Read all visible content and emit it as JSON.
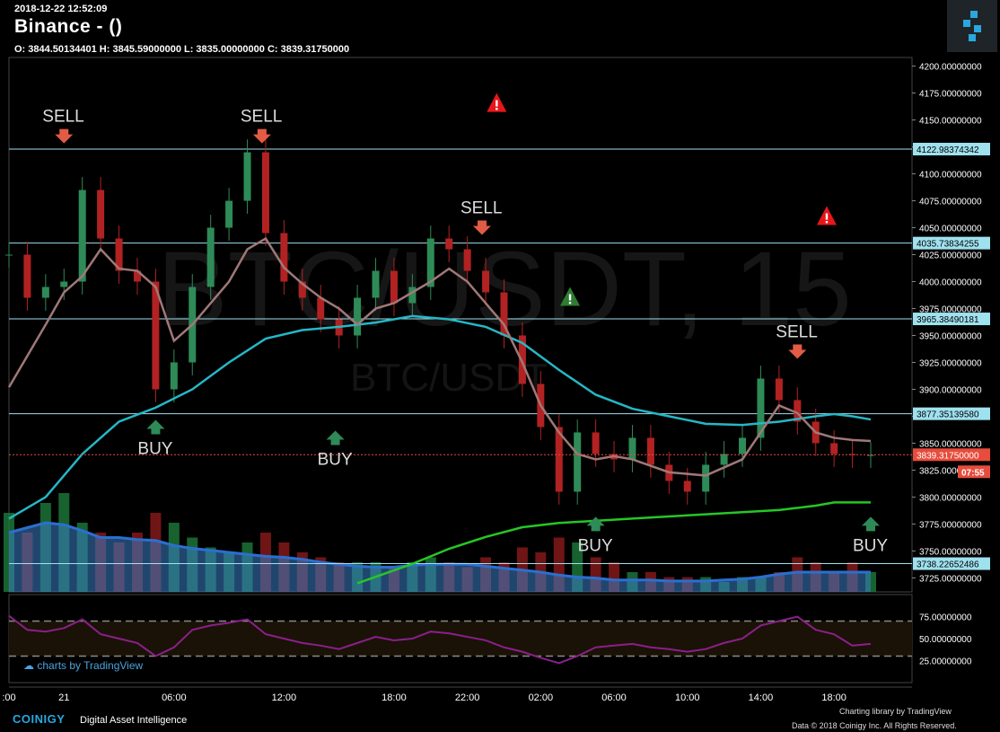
{
  "header": {
    "timestamp": "2018-12-22 12:52:09",
    "title": "Binance -  ()",
    "ohlc": "O: 3844.50134401 H: 3845.59000000 L: 3835.00000000 C: 3839.31750000"
  },
  "watermark": {
    "symbol": "BTC/USDT, 15",
    "pair": "BTC/USDT"
  },
  "colors": {
    "bg": "#000000",
    "up": "#2e8b57",
    "down": "#b22222",
    "ma_fast": "#a07878",
    "ma_mid": "#26b7c6",
    "ma_slow": "#26c626",
    "rsi": "#8b1f8b",
    "level": "#9fe1ef",
    "last_price": "#e74c3c"
  },
  "chart_data": {
    "type": "candlestick",
    "symbol": "BTC/USDT",
    "interval": "15",
    "last_price": 3839.3175,
    "countdown": "07:55",
    "price_axis": {
      "min": 3712,
      "max": 4208,
      "ticks": [
        4200,
        4175,
        4150,
        4125,
        4100,
        4075,
        4050,
        4025,
        4000,
        3975,
        3950,
        3925,
        3900,
        3875,
        3850,
        3825,
        3800,
        3775,
        3750,
        3725
      ],
      "tick_labels": [
        "4200.00000000",
        "4175.00000000",
        "4150.00000000",
        "4125.00000000",
        "4100.00000000",
        "4075.00000000",
        "4050.00000000",
        "4025.00000000",
        "4000.00000000",
        "3975.00000000",
        "3950.00000000",
        "3925.00000000",
        "3900.00000000",
        "3875.00000000",
        "3850.00000000",
        "3825.00000000",
        "3800.00000000",
        "3775.00000000",
        "3750.00000000",
        "3725.00000000"
      ]
    },
    "levels": [
      {
        "value": 4122.98374342,
        "label": "4122.98374342"
      },
      {
        "value": 4035.73834255,
        "label": "4035.73834255"
      },
      {
        "value": 3965.38490181,
        "label": "3965.38490181"
      },
      {
        "value": 3877.3513958,
        "label": "3877.35139580"
      },
      {
        "value": 3738.22652486,
        "label": "3738.22652486"
      }
    ],
    "last_price_label": "3839.31750000",
    "time_axis": {
      "labels": [
        ":00",
        "21",
        "06:00",
        "12:00",
        "18:00",
        "22:00",
        "02:00",
        "06:00",
        "10:00",
        "14:00",
        "18:00"
      ],
      "positions": [
        0,
        1.5,
        4.5,
        7.5,
        10.5,
        12.5,
        14.5,
        16.5,
        18.5,
        20.5,
        22.5
      ],
      "hours_span": [
        0,
        23.5
      ]
    },
    "price_series": {
      "hours": [
        0,
        0.5,
        1,
        1.5,
        2,
        2.5,
        3,
        3.5,
        4,
        4.5,
        5,
        5.5,
        6,
        6.5,
        7,
        7.5,
        8,
        8.5,
        9,
        9.5,
        10,
        10.5,
        11,
        11.5,
        12,
        12.5,
        13,
        13.5,
        14,
        14.5,
        15,
        15.5,
        16,
        16.5,
        17,
        17.5,
        18,
        18.5,
        19,
        19.5,
        20,
        20.5,
        21,
        21.5,
        22,
        22.5,
        23,
        23.5
      ],
      "close": [
        4025,
        3985,
        3995,
        4000,
        4085,
        4040,
        4010,
        4000,
        3900,
        3925,
        3995,
        4050,
        4075,
        4120,
        4045,
        4000,
        3985,
        3965,
        3950,
        3985,
        4010,
        3980,
        3995,
        4040,
        4030,
        4010,
        3990,
        3950,
        3905,
        3865,
        3805,
        3860,
        3840,
        3835,
        3855,
        3830,
        3815,
        3805,
        3830,
        3840,
        3855,
        3910,
        3890,
        3870,
        3850,
        3840,
        3839,
        3839
      ]
    },
    "ma_fast": {
      "hours": [
        0,
        1,
        1.5,
        2,
        2.5,
        3,
        3.5,
        4,
        4.5,
        5,
        6,
        6.5,
        7,
        7.5,
        8,
        8.5,
        9,
        9.5,
        10,
        10.5,
        11,
        11.5,
        12,
        12.5,
        13,
        13.5,
        14,
        14.5,
        15,
        15.5,
        16,
        16.5,
        17,
        18,
        19,
        20,
        21,
        21.5,
        22,
        22.5,
        23,
        23.5
      ],
      "values": [
        3902,
        3960,
        3990,
        4005,
        4030,
        4012,
        4010,
        3995,
        3945,
        3960,
        4000,
        4030,
        4040,
        4013,
        3998,
        3985,
        3975,
        3960,
        3975,
        3980,
        3990,
        4000,
        4012,
        4000,
        3980,
        3960,
        3925,
        3885,
        3860,
        3840,
        3835,
        3838,
        3835,
        3823,
        3820,
        3835,
        3885,
        3878,
        3860,
        3855,
        3853,
        3852
      ]
    },
    "ma_mid": {
      "hours": [
        0,
        1,
        2,
        3,
        4,
        5,
        6,
        7,
        8,
        9,
        10,
        11,
        12,
        13,
        14,
        15,
        16,
        17,
        18,
        19,
        20,
        21,
        22,
        22.5,
        23,
        23.5
      ],
      "values": [
        3780,
        3800,
        3840,
        3870,
        3883,
        3900,
        3925,
        3947,
        3955,
        3958,
        3962,
        3968,
        3965,
        3958,
        3943,
        3918,
        3895,
        3882,
        3875,
        3868,
        3867,
        3870,
        3875,
        3877,
        3875,
        3872
      ]
    },
    "ma_slow": {
      "hours": [
        9.5,
        11,
        12,
        13,
        14,
        15,
        16,
        17,
        18,
        19,
        20,
        21,
        22,
        22.5,
        23,
        23.5
      ],
      "values": [
        3720,
        3738,
        3752,
        3763,
        3772,
        3776,
        3778,
        3780,
        3782,
        3784,
        3786,
        3788,
        3792,
        3795,
        3795,
        3795
      ]
    },
    "volume": {
      "hours": [
        0,
        0.5,
        1,
        1.5,
        2,
        2.5,
        3,
        3.5,
        4,
        4.5,
        5,
        5.5,
        6,
        6.5,
        7,
        7.5,
        8,
        8.5,
        9,
        9.5,
        10,
        10.5,
        11,
        11.5,
        12,
        12.5,
        13,
        13.5,
        14,
        14.5,
        15,
        15.5,
        16,
        16.5,
        17,
        17.5,
        18,
        18.5,
        19,
        19.5,
        20,
        20.5,
        21,
        21.5,
        22,
        22.5,
        23,
        23.5
      ],
      "values": [
        0.8,
        0.6,
        0.9,
        1.0,
        0.7,
        0.6,
        0.5,
        0.6,
        0.8,
        0.7,
        0.55,
        0.45,
        0.4,
        0.5,
        0.6,
        0.5,
        0.4,
        0.35,
        0.3,
        0.3,
        0.3,
        0.25,
        0.3,
        0.35,
        0.3,
        0.25,
        0.35,
        0.3,
        0.45,
        0.4,
        0.55,
        0.5,
        0.35,
        0.3,
        0.2,
        0.2,
        0.15,
        0.15,
        0.15,
        0.1,
        0.15,
        0.15,
        0.2,
        0.35,
        0.3,
        0.2,
        0.3,
        0.2
      ],
      "volume_ma": [
        0.6,
        0.65,
        0.7,
        0.68,
        0.62,
        0.55,
        0.55,
        0.53,
        0.52,
        0.47,
        0.44,
        0.42,
        0.4,
        0.38,
        0.36,
        0.35,
        0.33,
        0.3,
        0.28,
        0.26,
        0.25,
        0.25,
        0.27,
        0.28,
        0.28,
        0.28,
        0.26,
        0.24,
        0.22,
        0.2,
        0.17,
        0.15,
        0.14,
        0.12,
        0.12,
        0.12,
        0.11,
        0.11,
        0.11,
        0.12,
        0.13,
        0.15,
        0.18,
        0.2,
        0.2,
        0.2,
        0.2,
        0.2
      ]
    },
    "rsi": {
      "axis_labels": [
        "75.00000000",
        "50.00000000",
        "25.00000000"
      ],
      "ticks": [
        75,
        50,
        25
      ],
      "bands": [
        70,
        30
      ],
      "hours": [
        0,
        0.5,
        1,
        1.5,
        2,
        2.5,
        3,
        3.5,
        4,
        4.5,
        5,
        5.5,
        6,
        6.5,
        7,
        7.5,
        8,
        8.5,
        9,
        9.5,
        10,
        10.5,
        11,
        11.5,
        12,
        12.5,
        13,
        13.5,
        14,
        14.5,
        15,
        15.5,
        16,
        16.5,
        17,
        17.5,
        18,
        18.5,
        19,
        19.5,
        20,
        20.5,
        21,
        21.5,
        22,
        22.5,
        23,
        23.5
      ],
      "values": [
        76,
        60,
        58,
        62,
        72,
        55,
        50,
        45,
        30,
        40,
        60,
        65,
        68,
        72,
        55,
        50,
        45,
        42,
        38,
        45,
        52,
        48,
        50,
        58,
        56,
        52,
        48,
        40,
        35,
        28,
        22,
        30,
        40,
        42,
        44,
        40,
        38,
        35,
        38,
        45,
        50,
        65,
        70,
        75,
        60,
        55,
        42,
        44
      ]
    },
    "signals": [
      {
        "label": "SELL",
        "type": "sell",
        "hour": 1.5,
        "price": 4120
      },
      {
        "label": "SELL",
        "type": "sell",
        "hour": 6.9,
        "price": 4120
      },
      {
        "label": "SELL",
        "type": "sell",
        "hour": 12.9,
        "price": 4035
      },
      {
        "label": "SELL",
        "type": "sell",
        "hour": 21.5,
        "price": 3920
      },
      {
        "label": "BUY",
        "type": "buy",
        "hour": 4.0,
        "price": 3880
      },
      {
        "label": "BUY",
        "type": "buy",
        "hour": 8.9,
        "price": 3870
      },
      {
        "label": "BUY",
        "type": "buy",
        "hour": 16.0,
        "price": 3790
      },
      {
        "label": "BUY",
        "type": "buy",
        "hour": 23.5,
        "price": 3790
      }
    ],
    "alerts": [
      {
        "type": "red",
        "hour": 13.3,
        "price": 4165
      },
      {
        "type": "red",
        "hour": 22.3,
        "price": 4060
      },
      {
        "type": "green",
        "hour": 15.3,
        "price": 3985
      }
    ]
  },
  "branding": {
    "tv_badge": "charts by TradingView",
    "brand": "COINIGY",
    "tagline": "Digital Asset Intelligence",
    "lib_credit": "Charting library by  TradingView",
    "copyright": "Data © 2018  Coinigy Inc. All Rights Reserved."
  }
}
